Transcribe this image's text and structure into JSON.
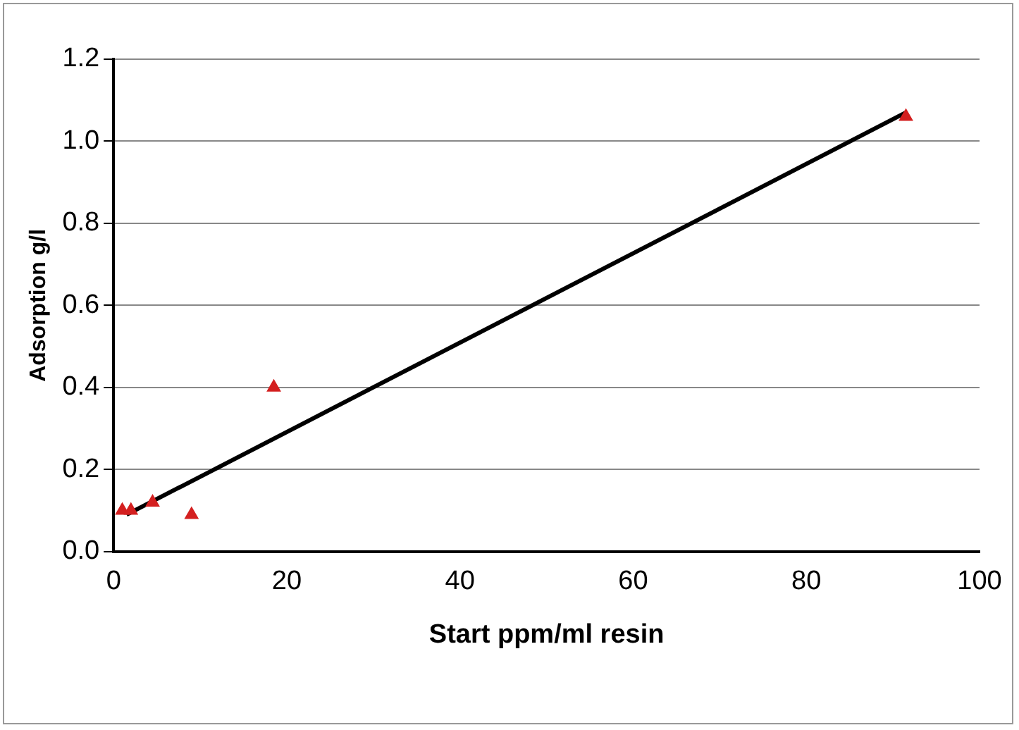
{
  "chart_data": {
    "type": "scatter",
    "xlabel": "Start ppm/ml resin",
    "ylabel": "Adsorption g/l",
    "series": [
      {
        "type": "scatter",
        "color": "#d42020",
        "x": [
          1,
          2,
          4.5,
          9,
          18.5,
          91.5
        ],
        "values": [
          0.1,
          0.1,
          0.12,
          0.09,
          0.4,
          1.06
        ],
        "marker": "triangle"
      },
      {
        "type": "line",
        "color": "#000000",
        "x": [
          1.5,
          91.5
        ],
        "values": [
          0.09,
          1.07
        ],
        "marker": "none"
      }
    ],
    "xlim": [
      0,
      100
    ],
    "xticks": [
      0,
      20,
      40,
      60,
      80,
      100
    ],
    "ylim": [
      0,
      1.2
    ],
    "yticks": [
      {
        "value": 0,
        "label": "0.0"
      },
      {
        "value": 0.2,
        "label": "0.2"
      },
      {
        "value": 0.4,
        "label": "0.4"
      },
      {
        "value": 0.6,
        "label": "0.6"
      },
      {
        "value": 0.8,
        "label": "0.8"
      },
      {
        "value": 1.0,
        "label": "1.0"
      },
      {
        "value": 1.2,
        "label": "1.2"
      }
    ],
    "grid": "y",
    "legend": false
  }
}
